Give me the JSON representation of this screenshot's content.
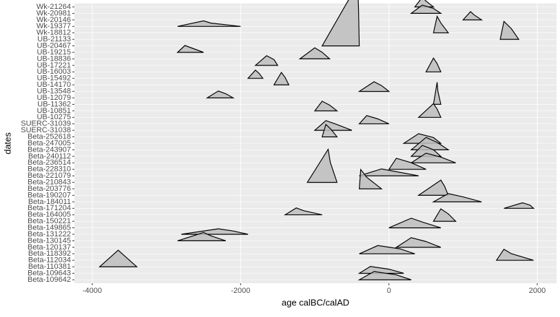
{
  "chart_data": {
    "type": "ridgeline",
    "x_label": "age calBC/calAD",
    "y_label": "dates",
    "xlim": [
      -4241,
      2260
    ],
    "xticks": [
      -4000,
      -2000,
      0,
      2000
    ],
    "grid": true,
    "fill": "#bdbdbd",
    "color": "#000000",
    "series": [
      {
        "name": "Beta-109642",
        "x": [
          -400,
          -200,
          100,
          300
        ],
        "values": [
          0,
          0.6,
          0.36,
          0
        ]
      },
      {
        "name": "Beta-109643",
        "x": [
          -400,
          -250,
          0,
          200
        ],
        "values": [
          0,
          0.5,
          0.3,
          0
        ]
      },
      {
        "name": "Beta-110381",
        "x": [
          -3900,
          -3650,
          -3550,
          -3400
        ],
        "values": [
          0,
          1.2,
          0.72,
          0
        ]
      },
      {
        "name": "Beta-112034",
        "x": [
          1450,
          1550,
          1650,
          1950
        ],
        "values": [
          0,
          0.8,
          0.48,
          0
        ]
      },
      {
        "name": "Beta-118392",
        "x": [
          -400,
          -150,
          150,
          350
        ],
        "values": [
          0,
          0.6,
          0.36,
          0
        ]
      },
      {
        "name": "Beta-120137",
        "x": [
          100,
          300,
          500,
          700
        ],
        "values": [
          0,
          0.7,
          0.42,
          0
        ]
      },
      {
        "name": "Beta-130145",
        "x": [
          -2850,
          -2500,
          -2400,
          -2200
        ],
        "values": [
          0,
          0.6,
          0.36,
          0
        ]
      },
      {
        "name": "Beta-131222",
        "x": [
          -2800,
          -2300,
          -2100,
          -1900
        ],
        "values": [
          0,
          0.4,
          0.24,
          0
        ]
      },
      {
        "name": "Beta-149865",
        "x": [
          0,
          300,
          450,
          700
        ],
        "values": [
          0,
          0.7,
          0.42,
          0
        ]
      },
      {
        "name": "Beta-150221",
        "x": [
          600,
          700,
          800,
          900
        ],
        "values": [
          0,
          0.9,
          0.54,
          0
        ]
      },
      {
        "name": "Beta-164005",
        "x": [
          -1400,
          -1250,
          -1150,
          -900
        ],
        "values": [
          0,
          0.5,
          0.3,
          0
        ]
      },
      {
        "name": "Beta-171204",
        "x": [
          1550,
          1800,
          1900,
          1950
        ],
        "values": [
          0,
          0.4,
          0.24,
          0
        ]
      },
      {
        "name": "Beta-184011",
        "x": [
          600,
          800,
          1000,
          1250
        ],
        "values": [
          0,
          0.6,
          0.36,
          0
        ]
      },
      {
        "name": "Beta-190207",
        "x": [
          400,
          700,
          750,
          800
        ],
        "values": [
          0,
          1.1,
          0.66,
          0
        ]
      },
      {
        "name": "Beta-203776",
        "x": [
          -400,
          -380,
          -300,
          -100
        ],
        "values": [
          0,
          1.4,
          0.84,
          0
        ]
      },
      {
        "name": "Beta-210843",
        "x": [
          -1100,
          -820,
          -790,
          -700
        ],
        "values": [
          0,
          2.4,
          1.44,
          0
        ]
      },
      {
        "name": "Beta-221079",
        "x": [
          -400,
          -100,
          100,
          400
        ],
        "values": [
          0,
          0.5,
          0.3,
          0
        ]
      },
      {
        "name": "Beta-228310",
        "x": [
          0,
          100,
          300,
          500
        ],
        "values": [
          0,
          0.8,
          0.48,
          0
        ]
      },
      {
        "name": "Beta-236514",
        "x": [
          300,
          500,
          700,
          900
        ],
        "values": [
          0,
          0.7,
          0.42,
          0
        ]
      },
      {
        "name": "Beta-240112",
        "x": [
          300,
          450,
          600,
          700
        ],
        "values": [
          0,
          0.8,
          0.48,
          0
        ]
      },
      {
        "name": "Beta-243907",
        "x": [
          300,
          500,
          650,
          800
        ],
        "values": [
          0,
          0.9,
          0.54,
          0
        ]
      },
      {
        "name": "Beta-247005",
        "x": [
          200,
          400,
          600,
          700
        ],
        "values": [
          0,
          0.7,
          0.42,
          0
        ]
      },
      {
        "name": "Beta-252618",
        "x": [
          -900,
          -850,
          -780,
          -700
        ],
        "values": [
          0,
          0.9,
          0.54,
          0
        ]
      },
      {
        "name": "SUERC-31038",
        "x": [
          -1000,
          -850,
          -700,
          -500
        ],
        "values": [
          0,
          0.7,
          0.42,
          0
        ]
      },
      {
        "name": "SUERC-31039",
        "x": [
          -400,
          -300,
          -150,
          0
        ],
        "values": [
          0,
          0.6,
          0.36,
          0
        ]
      },
      {
        "name": "UB-10275",
        "x": [
          400,
          600,
          650,
          700
        ],
        "values": [
          0,
          1.0,
          0.6,
          0
        ]
      },
      {
        "name": "UB-10851",
        "x": [
          -1000,
          -900,
          -800,
          -700
        ],
        "values": [
          0,
          0.7,
          0.42,
          0
        ]
      },
      {
        "name": "UB-11362",
        "x": [
          600,
          650,
          660,
          700
        ],
        "values": [
          0,
          1.6,
          0.96,
          0
        ]
      },
      {
        "name": "UB-12079",
        "x": [
          -2450,
          -2300,
          -2200,
          -2100
        ],
        "values": [
          0,
          0.5,
          0.3,
          0
        ]
      },
      {
        "name": "UB-13548",
        "x": [
          -400,
          -200,
          -100,
          0
        ],
        "values": [
          0,
          0.7,
          0.42,
          0
        ]
      },
      {
        "name": "UB-14170",
        "x": [
          -1550,
          -1450,
          -1400,
          -1350
        ],
        "values": [
          0,
          0.9,
          0.54,
          0
        ]
      },
      {
        "name": "UB-15492",
        "x": [
          -1900,
          -1800,
          -1750,
          -1700
        ],
        "values": [
          0,
          0.6,
          0.36,
          0
        ]
      },
      {
        "name": "UB-16003",
        "x": [
          500,
          600,
          650,
          700
        ],
        "values": [
          0,
          1.0,
          0.6,
          0
        ]
      },
      {
        "name": "UB-17221",
        "x": [
          -1800,
          -1650,
          -1550,
          -1500
        ],
        "values": [
          0,
          0.7,
          0.42,
          0
        ]
      },
      {
        "name": "UB-18836",
        "x": [
          -1200,
          -1000,
          -900,
          -800
        ],
        "values": [
          0,
          0.8,
          0.48,
          0
        ]
      },
      {
        "name": "UB-19215",
        "x": [
          -2850,
          -2750,
          -2650,
          -2500
        ],
        "values": [
          0,
          0.5,
          0.3,
          0
        ]
      },
      {
        "name": "UB-20467",
        "x": [
          -900,
          -420,
          -410,
          -400
        ],
        "values": [
          0,
          4.5,
          2.7,
          0
        ]
      },
      {
        "name": "UB-21133",
        "x": [
          1500,
          1550,
          1650,
          1750
        ],
        "values": [
          0,
          1.3,
          0.78,
          0
        ]
      },
      {
        "name": "Wk-18812",
        "x": [
          600,
          650,
          700,
          800
        ],
        "values": [
          0,
          1.2,
          0.72,
          0
        ]
      },
      {
        "name": "Wk-19377",
        "x": [
          -2850,
          -2500,
          -2400,
          -2000
        ],
        "values": [
          0,
          0.4,
          0.24,
          0
        ]
      },
      {
        "name": "Wk-20146",
        "x": [
          1000,
          1100,
          1150,
          1250
        ],
        "values": [
          0,
          0.6,
          0.36,
          0
        ]
      },
      {
        "name": "Wk-20981",
        "x": [
          300,
          450,
          600,
          700
        ],
        "values": [
          0,
          0.6,
          0.36,
          0
        ]
      },
      {
        "name": "Wk-21264",
        "x": [
          350,
          450,
          500,
          600
        ],
        "values": [
          0,
          0.7,
          0.42,
          0
        ]
      }
    ]
  }
}
